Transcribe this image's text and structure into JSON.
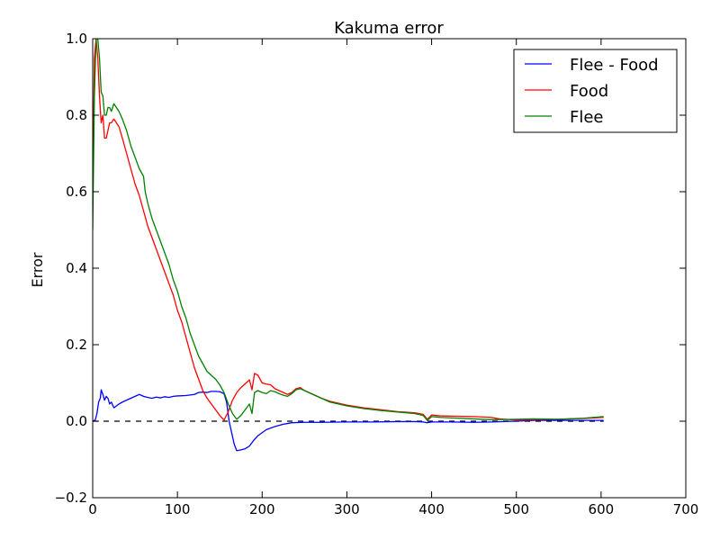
{
  "chart_data": {
    "type": "line",
    "title": "Kakuma error",
    "xlabel": "",
    "ylabel": "Error",
    "xlim": [
      0,
      700
    ],
    "ylim": [
      -0.2,
      1.0
    ],
    "xticks": [
      "0",
      "100",
      "200",
      "300",
      "400",
      "500",
      "600",
      "700"
    ],
    "yticks": [
      "−0.2",
      "0.0",
      "0.2",
      "0.4",
      "0.6",
      "0.8",
      "1.0"
    ],
    "xtick_values": [
      0,
      100,
      200,
      300,
      400,
      500,
      600,
      700
    ],
    "ytick_values": [
      -0.2,
      0.0,
      0.2,
      0.4,
      0.6,
      0.8,
      1.0
    ],
    "grid": false,
    "legend_position": "top-right",
    "reference_line": {
      "y": 0.0,
      "style": "dashed",
      "color": "#000000",
      "x_range": [
        0,
        603
      ]
    },
    "series": [
      {
        "name": "Flee - Food",
        "color": "#0000ff",
        "points": [
          [
            0,
            0.0
          ],
          [
            3,
            0.003
          ],
          [
            5,
            0.02
          ],
          [
            7,
            0.05
          ],
          [
            9,
            0.06
          ],
          [
            10,
            0.082
          ],
          [
            12,
            0.07
          ],
          [
            14,
            0.055
          ],
          [
            16,
            0.065
          ],
          [
            18,
            0.06
          ],
          [
            20,
            0.045
          ],
          [
            22,
            0.05
          ],
          [
            25,
            0.035
          ],
          [
            28,
            0.04
          ],
          [
            31,
            0.045
          ],
          [
            35,
            0.05
          ],
          [
            40,
            0.055
          ],
          [
            45,
            0.06
          ],
          [
            50,
            0.065
          ],
          [
            55,
            0.07
          ],
          [
            60,
            0.065
          ],
          [
            65,
            0.062
          ],
          [
            70,
            0.06
          ],
          [
            75,
            0.063
          ],
          [
            80,
            0.061
          ],
          [
            85,
            0.064
          ],
          [
            90,
            0.062
          ],
          [
            95,
            0.065
          ],
          [
            100,
            0.066
          ],
          [
            110,
            0.067
          ],
          [
            120,
            0.07
          ],
          [
            125,
            0.075
          ],
          [
            130,
            0.076
          ],
          [
            135,
            0.075
          ],
          [
            140,
            0.078
          ],
          [
            145,
            0.078
          ],
          [
            150,
            0.077
          ],
          [
            155,
            0.072
          ],
          [
            158,
            0.05
          ],
          [
            161,
            0.0
          ],
          [
            164,
            -0.03
          ],
          [
            167,
            -0.06
          ],
          [
            170,
            -0.077
          ],
          [
            175,
            -0.075
          ],
          [
            180,
            -0.072
          ],
          [
            185,
            -0.065
          ],
          [
            190,
            -0.05
          ],
          [
            195,
            -0.038
          ],
          [
            200,
            -0.03
          ],
          [
            205,
            -0.022
          ],
          [
            210,
            -0.018
          ],
          [
            215,
            -0.014
          ],
          [
            220,
            -0.011
          ],
          [
            225,
            -0.008
          ],
          [
            230,
            -0.006
          ],
          [
            235,
            -0.004
          ],
          [
            250,
            -0.003
          ],
          [
            270,
            -0.003
          ],
          [
            300,
            -0.002
          ],
          [
            330,
            -0.002
          ],
          [
            360,
            -0.001
          ],
          [
            380,
            -0.001
          ],
          [
            390,
            -0.002
          ],
          [
            395,
            -0.004
          ],
          [
            400,
            -0.002
          ],
          [
            420,
            -0.002
          ],
          [
            450,
            -0.003
          ],
          [
            470,
            -0.002
          ],
          [
            500,
            0.0
          ],
          [
            520,
            0.002
          ],
          [
            550,
            0.002
          ],
          [
            580,
            0.002
          ],
          [
            603,
            0.002
          ]
        ]
      },
      {
        "name": "Food",
        "color": "#ff0000",
        "points": [
          [
            0,
            0.6
          ],
          [
            2,
            0.95
          ],
          [
            4,
            1.0
          ],
          [
            6,
            0.95
          ],
          [
            8,
            0.85
          ],
          [
            10,
            0.78
          ],
          [
            12,
            0.8
          ],
          [
            14,
            0.74
          ],
          [
            16,
            0.74
          ],
          [
            18,
            0.76
          ],
          [
            20,
            0.78
          ],
          [
            22,
            0.78
          ],
          [
            25,
            0.79
          ],
          [
            28,
            0.78
          ],
          [
            31,
            0.77
          ],
          [
            35,
            0.74
          ],
          [
            40,
            0.7
          ],
          [
            45,
            0.66
          ],
          [
            50,
            0.62
          ],
          [
            55,
            0.59
          ],
          [
            60,
            0.55
          ],
          [
            65,
            0.51
          ],
          [
            70,
            0.48
          ],
          [
            75,
            0.45
          ],
          [
            80,
            0.42
          ],
          [
            85,
            0.39
          ],
          [
            90,
            0.36
          ],
          [
            95,
            0.33
          ],
          [
            100,
            0.29
          ],
          [
            105,
            0.26
          ],
          [
            110,
            0.22
          ],
          [
            115,
            0.18
          ],
          [
            120,
            0.14
          ],
          [
            125,
            0.11
          ],
          [
            130,
            0.08
          ],
          [
            135,
            0.06
          ],
          [
            140,
            0.045
          ],
          [
            145,
            0.03
          ],
          [
            150,
            0.015
          ],
          [
            155,
            0.003
          ],
          [
            160,
            0.025
          ],
          [
            165,
            0.055
          ],
          [
            170,
            0.075
          ],
          [
            175,
            0.088
          ],
          [
            180,
            0.098
          ],
          [
            185,
            0.108
          ],
          [
            188,
            0.082
          ],
          [
            191,
            0.125
          ],
          [
            195,
            0.12
          ],
          [
            200,
            0.1
          ],
          [
            205,
            0.097
          ],
          [
            210,
            0.095
          ],
          [
            215,
            0.085
          ],
          [
            220,
            0.08
          ],
          [
            225,
            0.075
          ],
          [
            230,
            0.07
          ],
          [
            235,
            0.075
          ],
          [
            240,
            0.085
          ],
          [
            245,
            0.088
          ],
          [
            250,
            0.08
          ],
          [
            260,
            0.07
          ],
          [
            270,
            0.06
          ],
          [
            280,
            0.052
          ],
          [
            290,
            0.047
          ],
          [
            300,
            0.042
          ],
          [
            320,
            0.035
          ],
          [
            340,
            0.03
          ],
          [
            360,
            0.025
          ],
          [
            380,
            0.022
          ],
          [
            390,
            0.018
          ],
          [
            395,
            0.005
          ],
          [
            400,
            0.016
          ],
          [
            410,
            0.014
          ],
          [
            430,
            0.013
          ],
          [
            450,
            0.012
          ],
          [
            470,
            0.01
          ],
          [
            480,
            0.006
          ],
          [
            500,
            0.003
          ],
          [
            520,
            0.004
          ],
          [
            550,
            0.005
          ],
          [
            580,
            0.007
          ],
          [
            603,
            0.01
          ]
        ]
      },
      {
        "name": "Flee",
        "color": "#008000",
        "points": [
          [
            0,
            0.5
          ],
          [
            2,
            0.85
          ],
          [
            4,
            1.0
          ],
          [
            6,
            1.0
          ],
          [
            8,
            0.95
          ],
          [
            10,
            0.86
          ],
          [
            12,
            0.85
          ],
          [
            14,
            0.8
          ],
          [
            16,
            0.8
          ],
          [
            18,
            0.82
          ],
          [
            20,
            0.82
          ],
          [
            22,
            0.81
          ],
          [
            25,
            0.83
          ],
          [
            28,
            0.82
          ],
          [
            31,
            0.81
          ],
          [
            35,
            0.79
          ],
          [
            40,
            0.76
          ],
          [
            45,
            0.72
          ],
          [
            50,
            0.69
          ],
          [
            55,
            0.66
          ],
          [
            60,
            0.64
          ],
          [
            62,
            0.6
          ],
          [
            65,
            0.57
          ],
          [
            70,
            0.53
          ],
          [
            75,
            0.5
          ],
          [
            80,
            0.47
          ],
          [
            85,
            0.44
          ],
          [
            90,
            0.41
          ],
          [
            95,
            0.37
          ],
          [
            100,
            0.34
          ],
          [
            105,
            0.3
          ],
          [
            110,
            0.27
          ],
          [
            115,
            0.23
          ],
          [
            120,
            0.2
          ],
          [
            125,
            0.17
          ],
          [
            130,
            0.15
          ],
          [
            135,
            0.13
          ],
          [
            140,
            0.12
          ],
          [
            145,
            0.11
          ],
          [
            150,
            0.095
          ],
          [
            155,
            0.075
          ],
          [
            160,
            0.045
          ],
          [
            165,
            0.02
          ],
          [
            170,
            0.005
          ],
          [
            175,
            0.015
          ],
          [
            180,
            0.03
          ],
          [
            185,
            0.045
          ],
          [
            188,
            0.02
          ],
          [
            191,
            0.075
          ],
          [
            195,
            0.08
          ],
          [
            200,
            0.075
          ],
          [
            205,
            0.072
          ],
          [
            210,
            0.08
          ],
          [
            215,
            0.077
          ],
          [
            220,
            0.072
          ],
          [
            225,
            0.068
          ],
          [
            230,
            0.065
          ],
          [
            235,
            0.072
          ],
          [
            240,
            0.082
          ],
          [
            245,
            0.085
          ],
          [
            250,
            0.08
          ],
          [
            260,
            0.07
          ],
          [
            270,
            0.06
          ],
          [
            280,
            0.05
          ],
          [
            290,
            0.045
          ],
          [
            300,
            0.04
          ],
          [
            320,
            0.033
          ],
          [
            340,
            0.028
          ],
          [
            360,
            0.024
          ],
          [
            380,
            0.02
          ],
          [
            390,
            0.015
          ],
          [
            395,
            0.002
          ],
          [
            400,
            0.012
          ],
          [
            410,
            0.01
          ],
          [
            430,
            0.008
          ],
          [
            450,
            0.006
          ],
          [
            470,
            0.004
          ],
          [
            500,
            0.005
          ],
          [
            520,
            0.006
          ],
          [
            550,
            0.005
          ],
          [
            580,
            0.008
          ],
          [
            603,
            0.012
          ]
        ]
      }
    ]
  }
}
